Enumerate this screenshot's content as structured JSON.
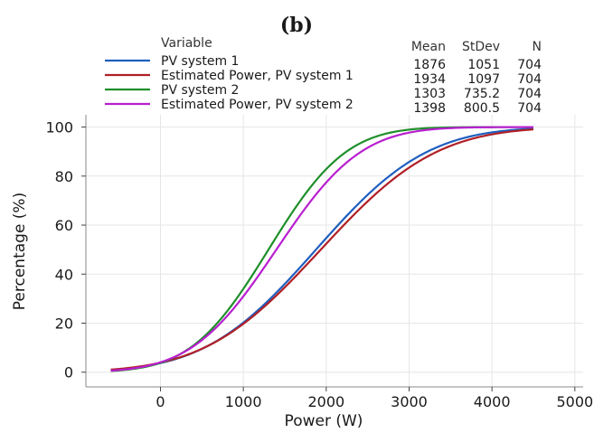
{
  "panel_label": "(b)",
  "chart_data": {
    "type": "line",
    "xlabel": "Power (W)",
    "ylabel": "Percentage (%)",
    "xlim": [
      -900,
      5100
    ],
    "ylim": [
      -6,
      105
    ],
    "x_ticks": [
      0,
      1000,
      2000,
      3000,
      4000,
      5000
    ],
    "y_ticks": [
      0,
      20,
      40,
      60,
      80,
      100
    ],
    "grid": true,
    "legend": {
      "position": "top",
      "title": "Variable",
      "columns": [
        "Mean",
        "StDev",
        "N"
      ]
    },
    "x_range": [
      -600,
      4500
    ],
    "series": [
      {
        "name": "PV system 1",
        "color": "#1f5fbf",
        "mean": 1876,
        "stdev": 1051,
        "n": 704,
        "mean_label": "1876",
        "stdev_label": "1051",
        "n_label": "704"
      },
      {
        "name": "Estimated Power, PV system 1",
        "color": "#b02026",
        "mean": 1934,
        "stdev": 1097,
        "n": 704,
        "mean_label": "1934",
        "stdev_label": "1097",
        "n_label": "704"
      },
      {
        "name": "PV system 2",
        "color": "#1f8f2a",
        "mean": 1303,
        "stdev": 735.2,
        "n": 704,
        "mean_label": "1303",
        "stdev_label": "735.2",
        "n_label": "704"
      },
      {
        "name": "Estimated Power, PV system 2",
        "color": "#b81fcf",
        "mean": 1398,
        "stdev": 800.5,
        "n": 704,
        "mean_label": "1398",
        "stdev_label": "800.5",
        "n_label": "704"
      }
    ]
  }
}
